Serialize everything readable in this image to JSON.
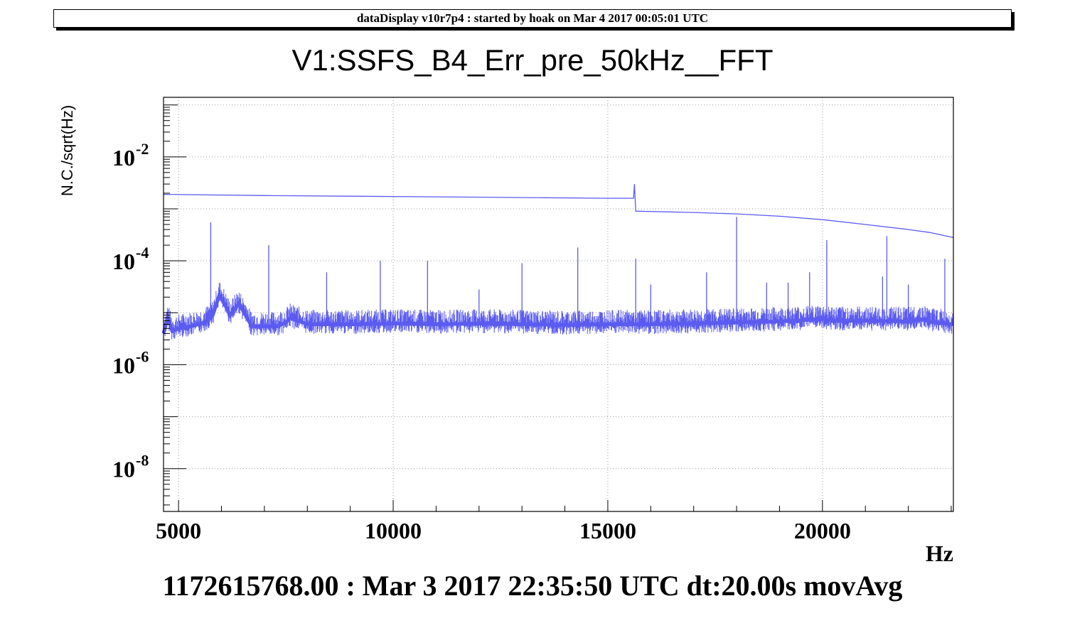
{
  "header": {
    "text": "dataDisplay v10r7p4 : started by hoak on Mar  4 2017 00:05:01 UTC"
  },
  "footer": {
    "text": "1172615768.00 : Mar  3 2017 22:35:50 UTC dt:20.00s movAvg"
  },
  "chart_data": {
    "type": "line",
    "title": "V1:SSFS_B4_Err_pre_50kHz__FFT",
    "xlabel": "Hz",
    "ylabel": "N.C./sqrt(Hz)",
    "xlim": [
      4650,
      23050
    ],
    "ylim": [
      1.5e-09,
      0.14
    ],
    "yscale": "log",
    "grid": true,
    "x_ticks": [
      5000,
      10000,
      15000,
      20000
    ],
    "x_tick_labels": [
      "5000",
      "10000",
      "15000",
      "20000"
    ],
    "y_ticks": [
      1e-08,
      1e-06,
      0.0001,
      0.01
    ],
    "y_tick_labels": [
      {
        "base": "10",
        "exp": "-8"
      },
      {
        "base": "10",
        "exp": "-6"
      },
      {
        "base": "10",
        "exp": "-4"
      },
      {
        "base": "10",
        "exp": "-2"
      }
    ],
    "line_color": "#5b5bf0",
    "series": [
      {
        "x": [
          4650,
          7000,
          9000,
          11000,
          13000,
          15000,
          15600,
          15620,
          15650,
          15700,
          17000,
          18000,
          19000,
          20000,
          21000,
          22000,
          22500,
          23050
        ],
        "values": [
          0.0019,
          0.0018,
          0.00175,
          0.0017,
          0.00165,
          0.0016,
          0.0016,
          0.003,
          0.0009,
          0.0009,
          0.00085,
          0.0008,
          0.00072,
          0.00062,
          0.0005,
          0.0004,
          0.00035,
          0.00028
        ]
      },
      {
        "x": [
          4650,
          4750,
          4850,
          5000,
          5300,
          5600,
          5800,
          5950,
          6050,
          6200,
          6400,
          6600,
          6700,
          7000,
          7300,
          7500,
          7600,
          8000,
          9000,
          10000,
          11000,
          12000,
          13000,
          14000,
          15000,
          16000,
          17000,
          18000,
          19000,
          20000,
          20300,
          21000,
          22000,
          22300,
          22600,
          23050
        ],
        "values": [
          4e-06,
          8e-06,
          4.5e-06,
          5e-06,
          5.5e-06,
          6.5e-06,
          9e-06,
          2.2e-05,
          1.6e-05,
          9e-06,
          1.5e-05,
          8e-06,
          5.5e-06,
          5.5e-06,
          5.5e-06,
          6.5e-06,
          8e-06,
          6e-06,
          6e-06,
          6.2e-06,
          6e-06,
          6.2e-06,
          6e-06,
          5.8e-06,
          6e-06,
          6e-06,
          6.2e-06,
          6.5e-06,
          6.8e-06,
          7.5e-06,
          7e-06,
          7e-06,
          6.8e-06,
          7.5e-06,
          6.5e-06,
          6e-06
        ]
      }
    ],
    "peaks": [
      {
        "x": 5750,
        "y": 0.00055
      },
      {
        "x": 7100,
        "y": 0.0002
      },
      {
        "x": 8450,
        "y": 6e-05
      },
      {
        "x": 9700,
        "y": 0.0001
      },
      {
        "x": 10800,
        "y": 0.0001
      },
      {
        "x": 12000,
        "y": 2.8e-05
      },
      {
        "x": 13000,
        "y": 9e-05
      },
      {
        "x": 14300,
        "y": 0.00018
      },
      {
        "x": 15650,
        "y": 0.00011
      },
      {
        "x": 16000,
        "y": 3.5e-05
      },
      {
        "x": 17300,
        "y": 6e-05
      },
      {
        "x": 18000,
        "y": 0.0007
      },
      {
        "x": 18700,
        "y": 3.8e-05
      },
      {
        "x": 19200,
        "y": 3.8e-05
      },
      {
        "x": 19700,
        "y": 6e-05
      },
      {
        "x": 20100,
        "y": 0.00025
      },
      {
        "x": 21400,
        "y": 5e-05
      },
      {
        "x": 21500,
        "y": 0.0003
      },
      {
        "x": 22000,
        "y": 3.5e-05
      },
      {
        "x": 22850,
        "y": 0.00011
      }
    ]
  }
}
